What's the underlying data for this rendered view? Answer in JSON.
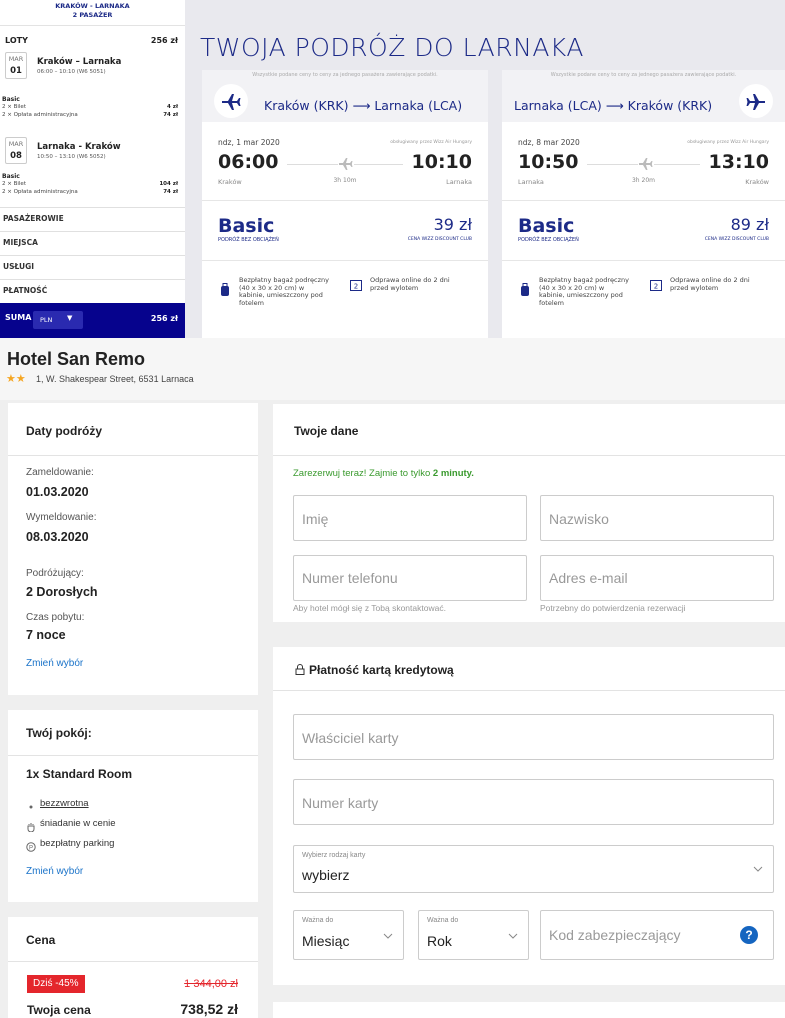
{
  "flight_summary": {
    "route": "KRAKÓW - LARNAKA",
    "passengers": "2 PASAŻER",
    "flights_label": "LOTY",
    "flights_total": "256 zł",
    "flights": [
      {
        "month": "MAR",
        "day": "01",
        "route": "Kraków – Larnaka",
        "details": "06:00 – 10:10 (W6 5051)",
        "fare": "Basic",
        "items": [
          {
            "label": "2 × Bilet",
            "price": "4 zł"
          },
          {
            "label": "2 × Opłata administracyjna",
            "price": "74 zł"
          }
        ]
      },
      {
        "month": "MAR",
        "day": "08",
        "route": "Larnaka - Kraków",
        "details": "10:50 – 13:10 (W6 5052)",
        "fare": "Basic",
        "items": [
          {
            "label": "2 × Bilet",
            "price": "104 zł"
          },
          {
            "label": "2 × Opłata administracyjna",
            "price": "74 zł"
          }
        ]
      }
    ],
    "sections": [
      "PASAŻEROWIE",
      "MIEJSCA",
      "USŁUGI",
      "PŁATNOŚĆ"
    ],
    "total_label": "SUMA",
    "currency": "PLN",
    "total": "256 zł"
  },
  "trip": {
    "title": "TWOJA PODRÓŻ DO LARNAKA",
    "cards": [
      {
        "note": "Wszystkie podane ceny to ceny za jednego pasażera zawierające podatki.",
        "route": "Kraków (KRK) ⟶ Larnaka (LCA)",
        "date": "ndz, 1 mar 2020",
        "operator": "obsługiwany przez Wizz Air Hungary",
        "departure": "06:00",
        "arrival": "10:10",
        "departure_city": "Kraków",
        "arrival_city": "Larnaka",
        "duration": "3h 10m",
        "fare": "Basic",
        "fare_subtitle": "PODRÓŻ BEZ OBCIĄŻEŃ",
        "price": "39 zł",
        "price_subtitle": "CENA WIZZ DISCOUNT CLUB",
        "baggage": "Bezpłatny bagaż podręczny (40 x 30 x 20 cm) w kabinie, umieszczony pod fotelem",
        "checkin": "Odprawa online do 2 dni przed wylotem"
      },
      {
        "note": "Wszystkie podane ceny to ceny za jednego pasażera zawierające podatki.",
        "route": "Larnaka (LCA) ⟶ Kraków (KRK)",
        "date": "ndz, 8 mar 2020",
        "operator": "obsługiwany przez Wizz Air Hungary",
        "departure": "10:50",
        "arrival": "13:10",
        "departure_city": "Larnaka",
        "arrival_city": "Kraków",
        "duration": "3h 20m",
        "fare": "Basic",
        "fare_subtitle": "PODRÓŻ BEZ OBCIĄŻEŃ",
        "price": "89 zł",
        "price_subtitle": "CENA WIZZ DISCOUNT CLUB",
        "baggage": "Bezpłatny bagaż podręczny (40 x 30 x 20 cm) w kabinie, umieszczony pod fotelem",
        "checkin": "Odprawa online do 2 dni przed wylotem"
      }
    ]
  },
  "hotel": {
    "name": "Hotel San Remo",
    "address": "1, W. Shakespear Street, 6531 Larnaca",
    "dates": {
      "title": "Daty podróży",
      "fields": [
        {
          "label": "Zameldowanie:",
          "value": "01.03.2020"
        },
        {
          "label": "Wymeldowanie:",
          "value": "08.03.2020"
        },
        {
          "label": "Podróżujący:",
          "value": "2 Dorosłych"
        },
        {
          "label": "Czas pobytu:",
          "value": "7 noce"
        }
      ],
      "change": "Zmień wybór"
    },
    "room": {
      "title": "Twój pokój:",
      "name": "1x Standard Room",
      "features": [
        "bezzwrotna",
        "śniadanie w cenie",
        "bezpłatny parking"
      ],
      "change": "Zmień wybór"
    },
    "price": {
      "title": "Cena",
      "discount": "Dziś -45%",
      "old_price": "1 344,00 zł",
      "label": "Twoja cena",
      "price": "738,52 zł"
    }
  },
  "form": {
    "title": "Twoje dane",
    "promo": "Zarezerwuj teraz! Zajmie to tylko",
    "promo_bold": "2 minuty.",
    "first_name": "Imię",
    "last_name": "Nazwisko",
    "phone": "Numer telefonu",
    "phone_hint": "Aby hotel mógł się z Tobą skontaktować.",
    "email": "Adres e-mail",
    "email_hint": "Potrzebny do potwierdzenia rezerwacji",
    "payment": {
      "title": "Płatność kartą kredytową",
      "holder": "Właściciel karty",
      "number": "Numer karty",
      "card_type_label": "Wybierz rodzaj karty",
      "card_type": "wybierz",
      "month_label": "Ważna do",
      "month": "Miesiąc",
      "year_label": "Ważna do",
      "year": "Rok",
      "cvv": "Kod zabezpieczający",
      "help": "?"
    }
  }
}
